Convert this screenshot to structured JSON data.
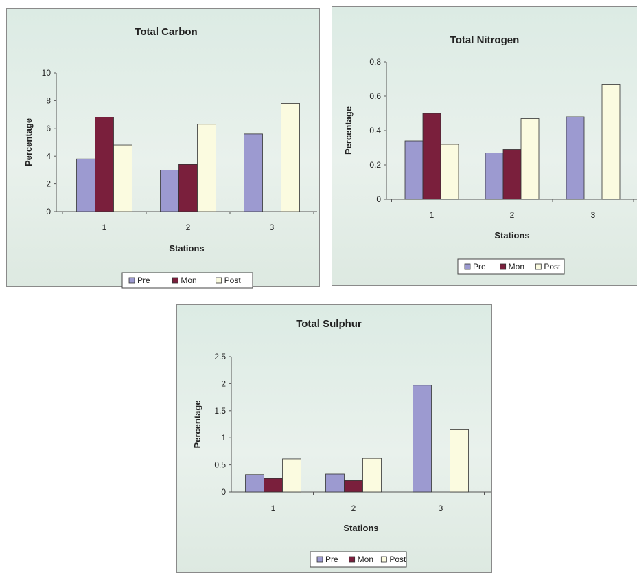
{
  "colors": {
    "pre": "#9c9ad0",
    "mon": "#7a1f3c",
    "post": "#fbfbe0"
  },
  "chart_data": [
    {
      "type": "bar",
      "title": "Total Carbon",
      "xlabel": "Stations",
      "ylabel": "Percentage",
      "categories": [
        "1",
        "2",
        "3"
      ],
      "ylim": [
        0,
        10
      ],
      "yticks": [
        "0",
        "2",
        "4",
        "6",
        "8",
        "10"
      ],
      "grid": false,
      "legend_position": "bottom",
      "series": [
        {
          "name": "Pre",
          "values": [
            3.8,
            3.0,
            5.6
          ]
        },
        {
          "name": "Mon",
          "values": [
            6.8,
            3.4,
            0
          ]
        },
        {
          "name": "Post",
          "values": [
            4.8,
            6.3,
            7.8
          ]
        }
      ]
    },
    {
      "type": "bar",
      "title": "Total Nitrogen",
      "xlabel": "Stations",
      "ylabel": "Percentage",
      "categories": [
        "1",
        "2",
        "3"
      ],
      "ylim": [
        0,
        0.8
      ],
      "yticks": [
        "0",
        "0.2",
        "0.4",
        "0.6",
        "0.8"
      ],
      "grid": false,
      "legend_position": "bottom",
      "series": [
        {
          "name": "Pre",
          "values": [
            0.34,
            0.27,
            0.48
          ]
        },
        {
          "name": "Mon",
          "values": [
            0.5,
            0.29,
            0
          ]
        },
        {
          "name": "Post",
          "values": [
            0.32,
            0.47,
            0.67
          ]
        }
      ]
    },
    {
      "type": "bar",
      "title": "Total Sulphur",
      "xlabel": "Stations",
      "ylabel": "Percentage",
      "categories": [
        "1",
        "2",
        "3"
      ],
      "ylim": [
        0,
        2.5
      ],
      "yticks": [
        "0",
        "0.5",
        "1",
        "1.5",
        "2",
        "2.5"
      ],
      "grid": false,
      "legend_position": "bottom",
      "series": [
        {
          "name": "Pre",
          "values": [
            0.32,
            0.33,
            1.97
          ]
        },
        {
          "name": "Mon",
          "values": [
            0.25,
            0.21,
            0
          ]
        },
        {
          "name": "Post",
          "values": [
            0.61,
            0.62,
            1.15
          ]
        }
      ]
    }
  ]
}
